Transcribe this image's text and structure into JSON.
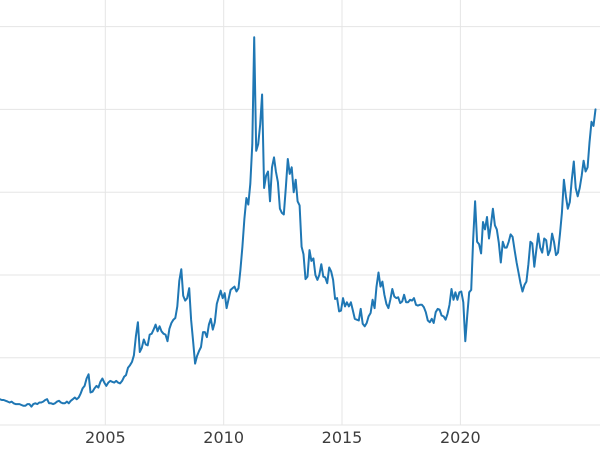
{
  "chart_data": {
    "type": "line",
    "title": "",
    "xlabel": "",
    "ylabel": "",
    "legend": "none",
    "grid": true,
    "background_color": "#ffffff",
    "line_color": "#1f77b4",
    "grid_color": "#e5e5e5",
    "tick_label_color": "#3d3d3d",
    "x_ticks": [
      2005,
      2010,
      2015,
      2020
    ],
    "x_tick_labels": [
      "2005",
      "2010",
      "2015",
      "2020"
    ],
    "y_tick_labels_visible": false,
    "y_gridlines": [
      10,
      20,
      30,
      40,
      50
    ],
    "xlim": [
      2000.55,
      2025.9
    ],
    "ylim": [
      2,
      52
    ],
    "x_start": 2000.5417,
    "x_step": 0.083333,
    "x_unit": "year (monthly samples)",
    "y_unit": "price (estimated from unlabeled gridlines, 10 units apart)",
    "y": [
      5.0,
      4.9,
      4.9,
      4.8,
      4.7,
      4.6,
      4.7,
      4.5,
      4.4,
      4.4,
      4.4,
      4.3,
      4.2,
      4.2,
      4.4,
      4.4,
      4.1,
      4.4,
      4.5,
      4.4,
      4.6,
      4.6,
      4.7,
      4.9,
      5.0,
      4.5,
      4.5,
      4.4,
      4.5,
      4.7,
      4.8,
      4.6,
      4.5,
      4.5,
      4.7,
      4.5,
      4.8,
      5.0,
      5.2,
      5.0,
      5.2,
      5.7,
      6.3,
      6.6,
      7.5,
      8.0,
      5.8,
      5.9,
      6.3,
      6.6,
      6.4,
      7.1,
      7.5,
      7.0,
      6.6,
      7.0,
      7.2,
      7.1,
      7.0,
      7.2,
      7.0,
      6.9,
      7.2,
      7.7,
      7.9,
      8.8,
      9.1,
      9.5,
      10.3,
      12.6,
      14.3,
      10.7,
      11.2,
      12.2,
      11.6,
      11.5,
      12.8,
      12.9,
      13.4,
      14.0,
      13.2,
      13.8,
      13.2,
      12.9,
      12.8,
      12.0,
      13.5,
      14.2,
      14.6,
      14.8,
      16.2,
      19.3,
      20.7,
      17.5,
      16.9,
      17.2,
      18.4,
      14.6,
      12.0,
      9.3,
      10.2,
      10.8,
      11.3,
      13.1,
      13.1,
      12.5,
      14.0,
      14.7,
      13.4,
      14.3,
      16.5,
      17.3,
      18.1,
      17.2,
      17.8,
      16.0,
      17.1,
      18.2,
      18.4,
      18.6,
      18.0,
      18.4,
      20.6,
      23.4,
      26.8,
      29.3,
      28.5,
      31.0,
      35.8,
      48.7,
      35.0,
      35.8,
      38.2,
      41.8,
      30.5,
      32.0,
      32.5,
      28.9,
      33.0,
      34.2,
      32.5,
      31.2,
      28.0,
      27.5,
      27.3,
      30.5,
      34.0,
      32.2,
      33.0,
      30.0,
      31.5,
      28.9,
      28.4,
      23.4,
      22.5,
      19.5,
      19.8,
      23.0,
      21.7,
      22.0,
      20.0,
      19.4,
      20.0,
      21.3,
      19.8,
      19.7,
      19.0,
      20.9,
      20.4,
      19.4,
      17.1,
      17.2,
      15.6,
      15.7,
      17.2,
      16.2,
      16.7,
      16.2,
      16.7,
      15.7,
      14.7,
      14.6,
      14.5,
      15.9,
      14.1,
      13.8,
      14.2,
      15.0,
      15.4,
      17.0,
      16.0,
      18.6,
      20.3,
      18.6,
      19.2,
      17.6,
      16.5,
      16.0,
      17.0,
      18.3,
      17.4,
      17.2,
      17.3,
      16.6,
      16.8,
      17.6,
      16.7,
      16.7,
      17.0,
      16.9,
      17.2,
      16.4,
      16.3,
      16.4,
      16.4,
      16.1,
      15.5,
      14.5,
      14.3,
      14.7,
      14.2,
      15.5,
      15.9,
      15.8,
      15.1,
      15.0,
      14.6,
      15.3,
      16.4,
      18.3,
      17.0,
      17.9,
      17.0,
      17.9,
      18.0,
      16.7,
      12.0,
      15.2,
      17.9,
      18.2,
      24.4,
      28.9,
      24.0,
      23.7,
      22.6,
      26.4,
      25.5,
      27.0,
      24.4,
      26.0,
      28.0,
      26.0,
      25.5,
      23.9,
      21.5,
      24.0,
      23.3,
      23.3,
      24.0,
      24.9,
      24.6,
      23.0,
      21.5,
      20.3,
      19.0,
      18.0,
      18.8,
      19.2,
      21.3,
      24.0,
      23.8,
      21.0,
      23.0,
      25.0,
      23.3,
      22.7,
      24.4,
      24.2,
      22.4,
      23.0,
      25.0,
      24.0,
      22.4,
      22.7,
      25.0,
      27.5,
      31.5,
      29.5,
      28.0,
      28.8,
      31.5,
      33.7,
      30.5,
      29.5,
      30.5,
      32.0,
      33.8,
      32.5,
      33.0,
      36.0,
      38.5,
      38.0,
      40.0
    ]
  }
}
